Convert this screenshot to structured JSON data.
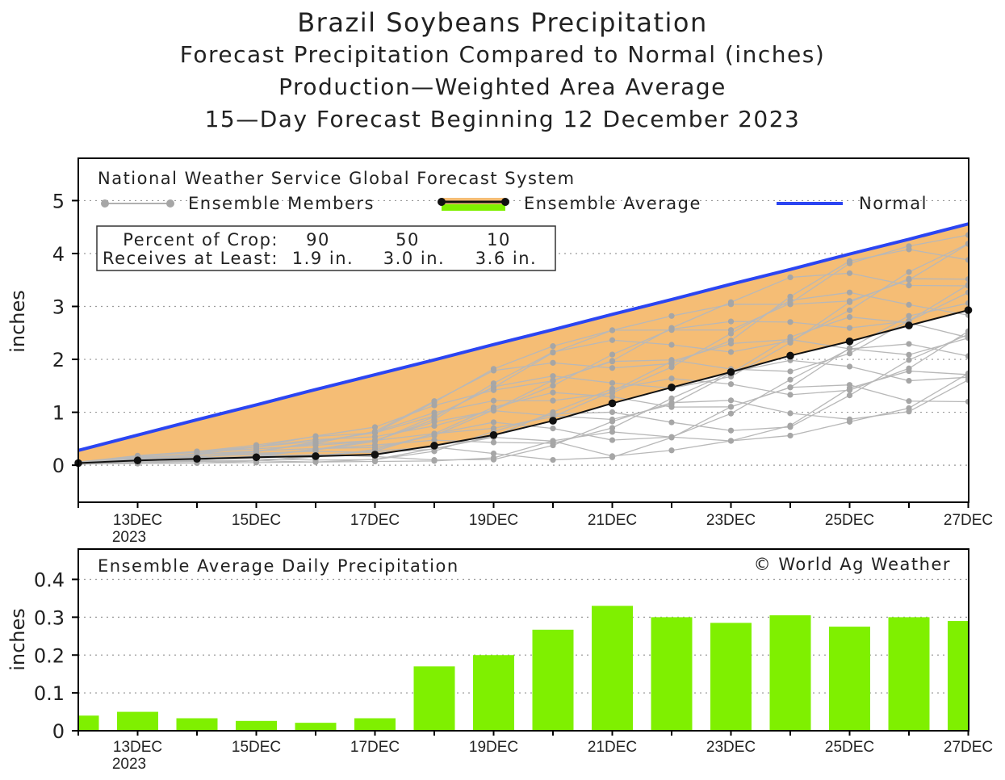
{
  "titles": {
    "line1": "Brazil Soybeans Precipitation",
    "line2": "Forecast Precipitation Compared to Normal (inches)",
    "line3": "Production—Weighted Area Average",
    "line4": "15—Day Forecast Beginning 12 December 2023"
  },
  "colors": {
    "normal": "#2b45f2",
    "ensemble_fill": "#f5bd75",
    "ensemble_avg": "#111111",
    "members": "#b8b8b8",
    "members_dot": "#a6a6a6",
    "bars": "#7ff000",
    "grid": "#9a9a9a"
  },
  "chart_data": [
    {
      "type": "line",
      "title": "Brazil Soybeans Precipitation",
      "source": "National Weather Service Global Forecast System",
      "ylabel": "inches",
      "ylim": [
        -0.7,
        5.8
      ],
      "yticks": [
        0,
        1,
        2,
        3,
        4,
        5
      ],
      "x": [
        "12DEC",
        "13DEC",
        "14DEC",
        "15DEC",
        "16DEC",
        "17DEC",
        "18DEC",
        "19DEC",
        "20DEC",
        "21DEC",
        "22DEC",
        "23DEC",
        "24DEC",
        "25DEC",
        "26DEC",
        "27DEC"
      ],
      "xtick_labels": [
        "13DEC",
        "15DEC",
        "17DEC",
        "19DEC",
        "21DEC",
        "23DEC",
        "25DEC",
        "27DEC"
      ],
      "xtick_year": "2023",
      "legend": {
        "members": "Ensemble Members",
        "average": "Ensemble Average",
        "normal": "Normal"
      },
      "crop_table": {
        "row1_label": "Percent of Crop:",
        "row2_label": "Receives at Least:",
        "percents": [
          "90",
          "50",
          "10"
        ],
        "amounts": [
          "1.9 in.",
          "3.0 in.",
          "3.6 in."
        ]
      },
      "series": [
        {
          "name": "Normal",
          "values": [
            0.28,
            0.57,
            0.86,
            1.14,
            1.43,
            1.71,
            1.99,
            2.28,
            2.56,
            2.85,
            3.13,
            3.42,
            3.7,
            3.99,
            4.27,
            4.56
          ]
        },
        {
          "name": "Ensemble Average",
          "values": [
            0.04,
            0.09,
            0.12,
            0.15,
            0.17,
            0.2,
            0.37,
            0.57,
            0.84,
            1.17,
            1.47,
            1.76,
            2.07,
            2.34,
            2.64,
            2.93
          ]
        }
      ],
      "members_spread": {
        "min": [
          0.02,
          0.03,
          0.04,
          0.05,
          0.06,
          0.07,
          0.08,
          0.09,
          0.1,
          0.15,
          0.28,
          0.46,
          0.56,
          0.82,
          0.98,
          1.2
        ],
        "max": [
          0.06,
          0.18,
          0.26,
          0.38,
          0.55,
          0.72,
          1.22,
          1.82,
          2.25,
          2.55,
          2.82,
          3.08,
          3.55,
          3.88,
          4.14,
          4.35
        ]
      }
    },
    {
      "type": "bar",
      "title": "Ensemble Average Daily Precipitation",
      "credit": "© World Ag Weather",
      "ylabel": "inches",
      "ylim": [
        0,
        0.48
      ],
      "yticks": [
        "0",
        "0.1",
        "0.2",
        "0.3",
        "0.4"
      ],
      "categories": [
        "12DEC",
        "13DEC",
        "14DEC",
        "15DEC",
        "16DEC",
        "17DEC",
        "18DEC",
        "19DEC",
        "20DEC",
        "21DEC",
        "22DEC",
        "23DEC",
        "24DEC",
        "25DEC",
        "26DEC",
        "27DEC"
      ],
      "values": [
        0.04,
        0.05,
        0.033,
        0.026,
        0.021,
        0.033,
        0.17,
        0.2,
        0.267,
        0.33,
        0.3,
        0.285,
        0.305,
        0.275,
        0.3,
        0.29
      ]
    }
  ]
}
